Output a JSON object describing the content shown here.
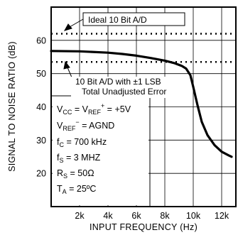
{
  "chart_data": {
    "type": "line",
    "title": "",
    "xlabel": "INPUT FREQUENCY (Hz)",
    "ylabel": "SIGNAL TO NOISE RATIO (dB)",
    "xlim": [
      0,
      13000
    ],
    "ylim": [
      10,
      70
    ],
    "x_ticks": [
      2000,
      4000,
      6000,
      8000,
      10000,
      12000
    ],
    "x_tick_labels": [
      "2k",
      "4k",
      "6k",
      "8k",
      "10k",
      "12k"
    ],
    "y_ticks": [
      20,
      30,
      40,
      50,
      60
    ],
    "y_tick_labels": [
      "20",
      "30",
      "40",
      "50",
      "60"
    ],
    "grid": true,
    "series": [
      {
        "name": "",
        "x": [
          0,
          2000,
          4000,
          5000,
          6000,
          7000,
          8000,
          8700,
          9200,
          9500,
          9800,
          10000,
          10300,
          10600,
          11000,
          11500,
          12000,
          12500,
          12700
        ],
        "y": [
          56.8,
          56.7,
          56.3,
          55.9,
          55.4,
          54.7,
          53.9,
          53.1,
          52.3,
          51.5,
          49.5,
          46.0,
          40.5,
          35.5,
          31.5,
          28.5,
          26.5,
          25.4,
          25.0
        ]
      }
    ],
    "reference_lines": [
      {
        "y": 62,
        "label": "Ideal 10 Bit A/D"
      },
      {
        "y": 53.5,
        "label": "10 Bit A/D with ±1 LSB Total Unadjusted Error"
      }
    ],
    "annotations": {
      "ideal": "Ideal 10 Bit A/D",
      "tue_line1": "10 Bit A/D with ±1 LSB",
      "tue_line2": "Total Unadjusted Error"
    },
    "conditions": {
      "vcc_v": "V",
      "vcc_sub": "CC",
      "vcc_eq": " = V",
      "vref_sub": "REF",
      "vref_sup": "+",
      "vcc_val": " = +5V",
      "vrefm_v": "V",
      "vrefm_sub": "REF",
      "vrefm_sup": "−",
      "vrefm_val": " = AGND",
      "fc_v": "f",
      "fc_sub": "C",
      "fc_val": " = 700 kHz",
      "fs_v": "f",
      "fs_sub": "S",
      "fs_val": " = 3 MHZ",
      "rs_v": "R",
      "rs_sub": "S",
      "rs_val": " = 50Ω",
      "ta_v": "T",
      "ta_sub": "A",
      "ta_val": " = 25ºC"
    }
  }
}
